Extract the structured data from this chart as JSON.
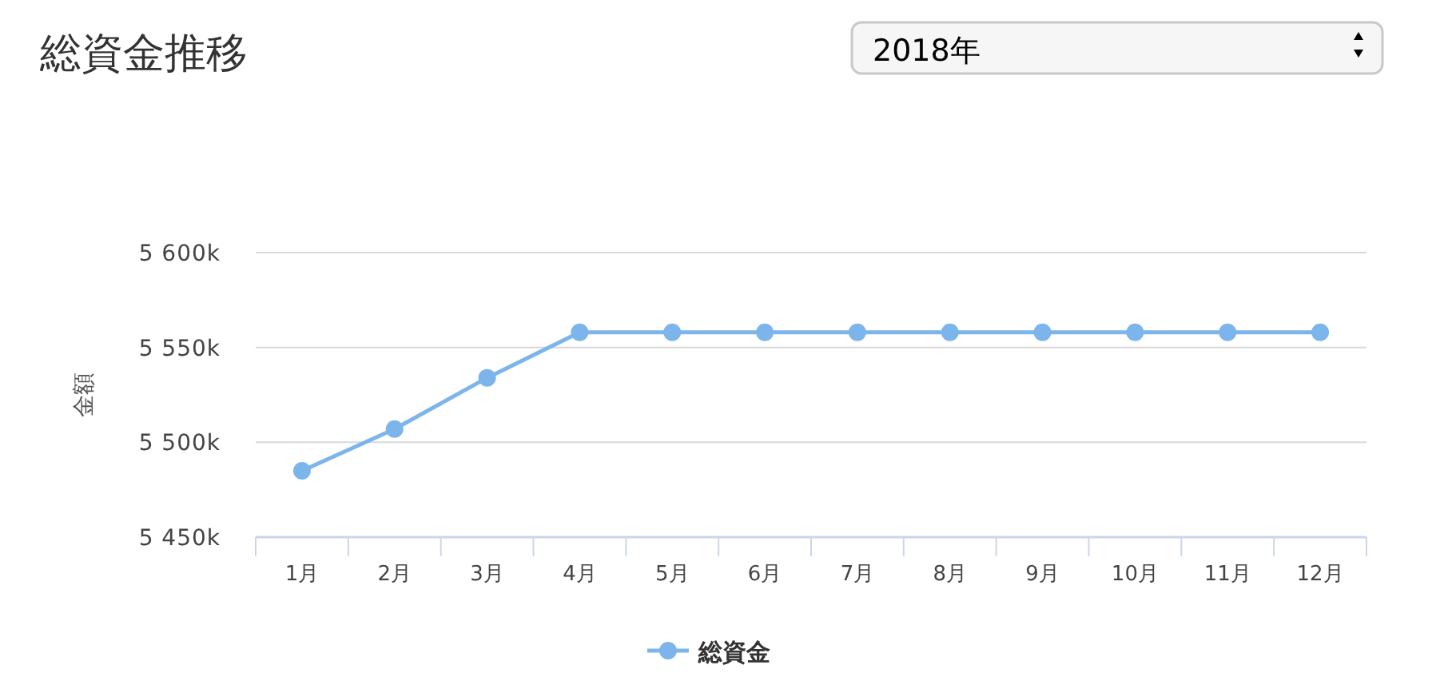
{
  "chart_data": {
    "type": "line",
    "title": "総資金推移",
    "subtitle": "2018年",
    "ylabel": "金額",
    "categories": [
      "1月",
      "2月",
      "3月",
      "4月",
      "5月",
      "6月",
      "7月",
      "8月",
      "9月",
      "10月",
      "11月",
      "12月"
    ],
    "series": [
      {
        "name": "総資金",
        "color": "#7cb5ec",
        "values": [
          5485000,
          5507000,
          5534000,
          5558000,
          5558000,
          5558000,
          5558000,
          5558000,
          5558000,
          5558000,
          5558000,
          5558000
        ]
      }
    ],
    "ylim": [
      5450000,
      5600000
    ],
    "yticks": [
      {
        "value": 5450000,
        "label": "5 450k"
      },
      {
        "value": 5500000,
        "label": "5 500k"
      },
      {
        "value": 5550000,
        "label": "5 550k"
      },
      {
        "value": 5600000,
        "label": "5 600k"
      }
    ],
    "grid": "y",
    "legend": "bottom",
    "marker": "circle",
    "line_style": "solid"
  }
}
